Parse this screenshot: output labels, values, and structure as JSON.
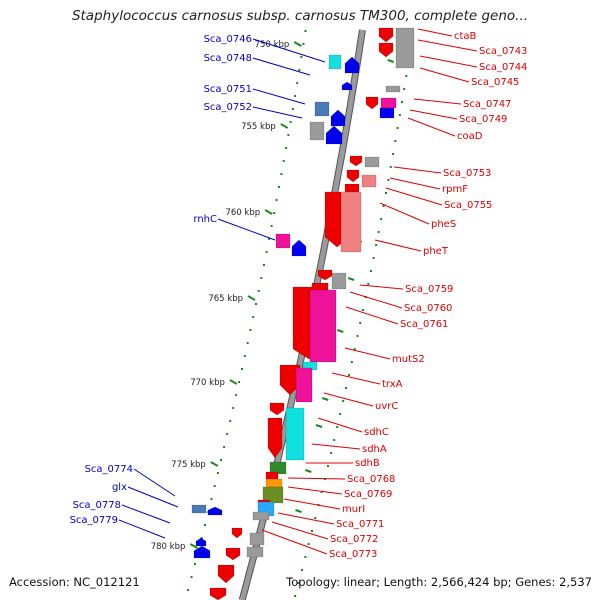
{
  "title": "Staphylococcus carnosus subsp. carnosus TM300, complete geno...",
  "footer": {
    "accession": "Accession: NC_012121",
    "topology": "Topology: linear; Length: 2,566,424 bp; Genes: 2,537"
  },
  "colors": {
    "backbone": "#888888",
    "tick": "#1a8a1a",
    "left_label": "#0000cc",
    "right_label": "#dd0000"
  },
  "kbp_marks": [
    {
      "label": "750 kbp",
      "kbp": 750
    },
    {
      "label": "755 kbp",
      "kbp": 755
    },
    {
      "label": "760 kbp",
      "kbp": 760
    },
    {
      "label": "765 kbp",
      "kbp": 765
    },
    {
      "label": "770 kbp",
      "kbp": 770
    },
    {
      "label": "775 kbp",
      "kbp": 775
    },
    {
      "label": "780 kbp",
      "kbp": 780
    }
  ],
  "left_labels": [
    "Sca_0746",
    "Sca_0748",
    "Sca_0751",
    "Sca_0752",
    "rnhC",
    "Sca_0774",
    "glx",
    "Sca_0778",
    "Sca_0779"
  ],
  "right_labels": [
    "ctaB",
    "Sca_0743",
    "Sca_0744",
    "Sca_0745",
    "Sca_0747",
    "Sca_0749",
    "coaD",
    "Sca_0753",
    "rpmF",
    "Sca_0755",
    "pheS",
    "pheT",
    "Sca_0759",
    "Sca_0760",
    "Sca_0761",
    "mutS2",
    "trxA",
    "uvrC",
    "sdhC",
    "sdhA",
    "sdhB",
    "Sca_0768",
    "Sca_0769",
    "murI",
    "Sca_0771",
    "Sca_0772",
    "Sca_0773"
  ]
}
